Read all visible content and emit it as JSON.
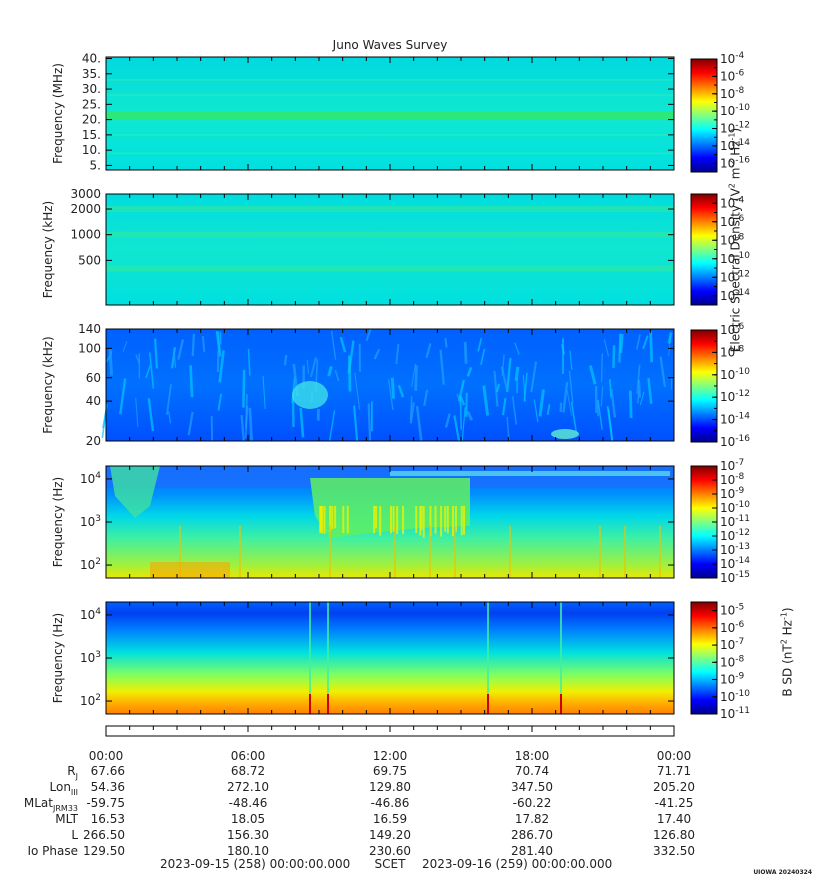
{
  "title": "Juno Waves Survey",
  "colors": {
    "jet": [
      "#00008f",
      "#0000ff",
      "#0080ff",
      "#00ffff",
      "#80ff80",
      "#ffff00",
      "#ff8000",
      "#ff0000",
      "#800000"
    ]
  },
  "chart_data": [
    {
      "type": "heatmap",
      "ylabel": "Frequency (MHz)",
      "yscale": "linear",
      "ylim": [
        3.5,
        40.5
      ],
      "yticks": [
        "5.",
        "10.",
        "15.",
        "20.",
        "25.",
        "30.",
        "35.",
        "40."
      ],
      "ytick_values": [
        5,
        10,
        15,
        20,
        25,
        30,
        35,
        40
      ],
      "colorbar": {
        "scale": "log",
        "range": [
          -17,
          -4
        ],
        "ticks": [
          -4,
          -6,
          -8,
          -10,
          -12,
          -14,
          -16
        ]
      },
      "description_level": "mostly uniform ~1e-12 with bright band near 21 MHz"
    },
    {
      "type": "heatmap",
      "ylabel": "Frequency (kHz)",
      "yscale": "log",
      "ylim": [
        150,
        3000
      ],
      "yticks": [
        "500",
        "1000",
        "2000",
        "3000"
      ],
      "ytick_values": [
        500,
        1000,
        2000,
        3000
      ],
      "colorbar": {
        "scale": "log",
        "range": [
          -15,
          -3
        ],
        "ticks": [
          -4,
          -6,
          -8,
          -10,
          -12,
          -14
        ]
      }
    },
    {
      "type": "heatmap",
      "ylabel": "Frequency (kHz)",
      "yscale": "log",
      "ylim": [
        20,
        140
      ],
      "yticks": [
        "20",
        "40",
        "60",
        "100",
        "140"
      ],
      "ytick_values": [
        20,
        40,
        60,
        100,
        140
      ],
      "colorbar": {
        "scale": "log",
        "range": [
          -16,
          -6
        ],
        "ticks": [
          -6,
          -8,
          -10,
          -12,
          -14,
          -16
        ]
      }
    },
    {
      "type": "heatmap",
      "ylabel": "Frequency (Hz)",
      "yscale": "log",
      "ylim": [
        50,
        20000
      ],
      "yticks": [
        "10",
        "10",
        "10"
      ],
      "ytick_exponents": [
        "2",
        "3",
        "4"
      ],
      "ytick_values": [
        100,
        1000,
        10000
      ],
      "colorbar": {
        "scale": "log",
        "range": [
          -15,
          -7
        ],
        "ticks": [
          -7,
          -8,
          -9,
          -10,
          -11,
          -12,
          -13,
          -14,
          -15
        ]
      }
    },
    {
      "type": "heatmap",
      "ylabel": "Frequency (Hz)",
      "yscale": "log",
      "ylim": [
        50,
        20000
      ],
      "yticks": [
        "10",
        "10",
        "10"
      ],
      "ytick_exponents": [
        "2",
        "3",
        "4"
      ],
      "ytick_values": [
        100,
        1000,
        10000
      ],
      "colorbar": {
        "scale": "log",
        "range": [
          -11,
          -4.5
        ],
        "ticks": [
          -5,
          -6,
          -7,
          -8,
          -9,
          -10,
          -11
        ]
      }
    }
  ],
  "colorbar_labels": {
    "electric": "Electric Spectral Density (V",
    "electric_sup1": "2",
    "electric_mid": " m",
    "electric_sup2": "-2",
    "electric_mid2": " Hz",
    "electric_sup3": "-1",
    "electric_end": ")",
    "magnetic": "B SD (nT",
    "magnetic_sup1": "2",
    "magnetic_mid": " Hz",
    "magnetic_sup2": "-1",
    "magnetic_end": ")"
  },
  "xaxis": {
    "times": [
      "00:00",
      "06:00",
      "12:00",
      "18:00",
      "00:00"
    ],
    "hours": [
      0,
      6,
      12,
      18,
      24
    ],
    "rows": [
      {
        "label": "R",
        "sub": "J",
        "values": [
          "67.66",
          "68.72",
          "69.75",
          "70.74",
          "71.71"
        ]
      },
      {
        "label": "Lon",
        "sub": "III",
        "values": [
          "54.36",
          "272.10",
          "129.80",
          "347.50",
          "205.20"
        ]
      },
      {
        "label": "MLat",
        "sub": "JRM33",
        "values": [
          "-59.75",
          "-48.46",
          "-46.86",
          "-60.22",
          "-41.25"
        ]
      },
      {
        "label": "MLT",
        "sub": "",
        "values": [
          "16.53",
          "18.05",
          "16.59",
          "17.82",
          "17.40"
        ]
      },
      {
        "label": "L",
        "sub": "",
        "values": [
          "266.50",
          "156.30",
          "149.20",
          "286.70",
          "126.80"
        ]
      },
      {
        "label": "Io Phase",
        "sub": "",
        "values": [
          "129.50",
          "180.10",
          "230.60",
          "281.40",
          "332.50"
        ]
      }
    ]
  },
  "footer": {
    "start": "2023-09-15 (258) 00:00:00.000",
    "scet": "SCET",
    "end": "2023-09-16 (259) 00:00:00.000",
    "stamp": "UIOWA 20240324"
  }
}
